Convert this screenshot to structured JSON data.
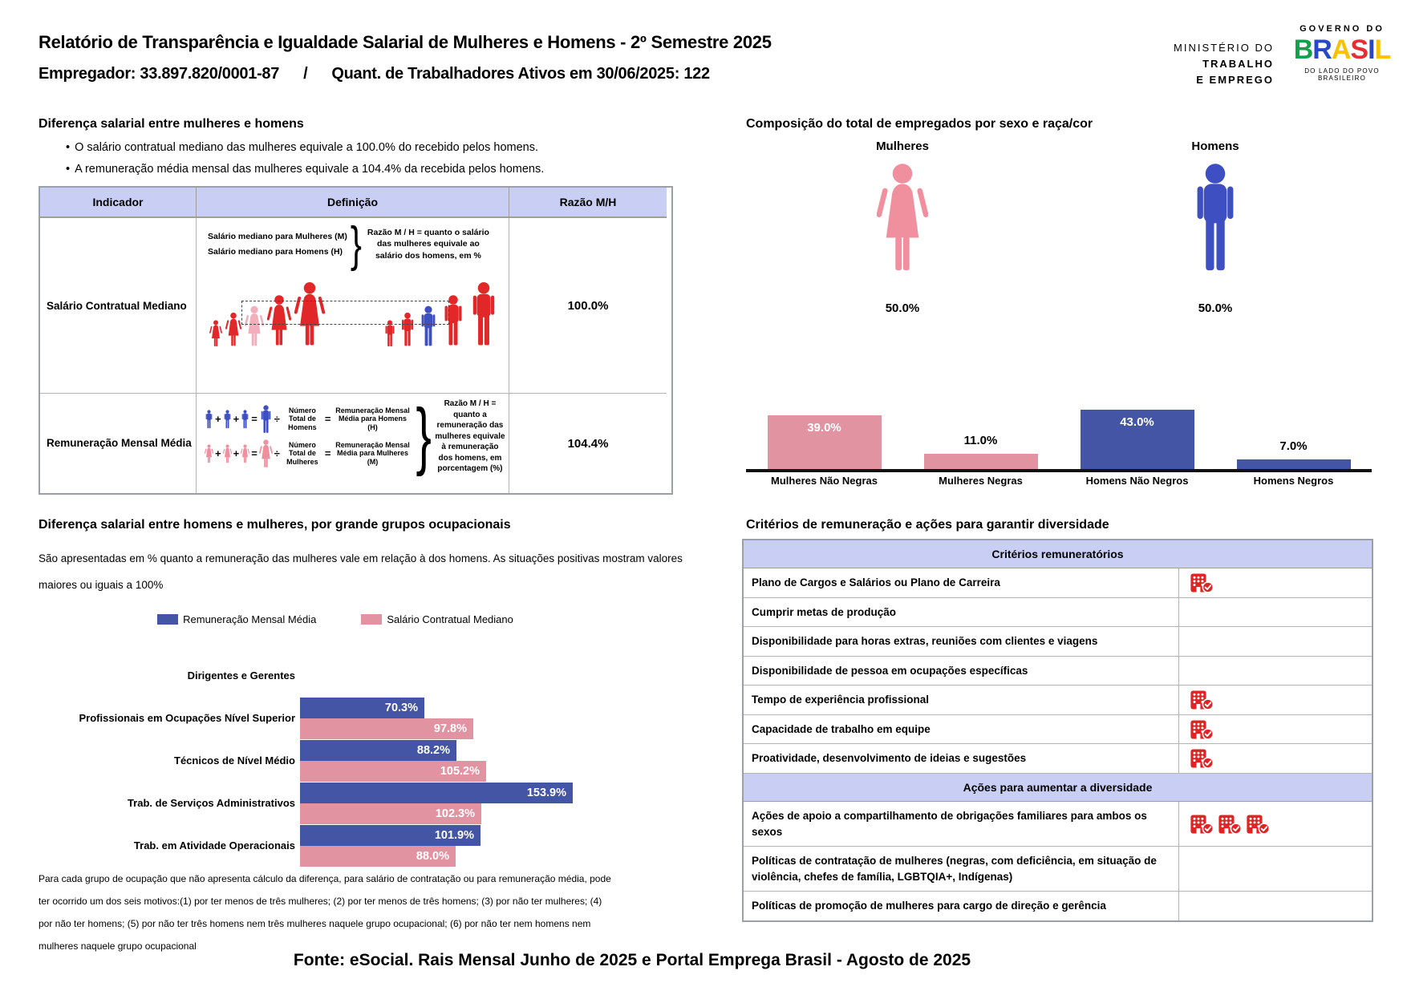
{
  "header": {
    "title": "Relatório de Transparência e Igualdade Salarial de Mulheres e Homens - 2º Semestre 2025",
    "employer": "Empregador: 33.897.820/0001-87",
    "separator": "/",
    "workers": "Quant. de Trabalhadores Ativos em 30/06/2025: 122",
    "ministry": {
      "line1": "MINISTÉRIO DO",
      "line2": "TRABALHO",
      "line3": "E EMPREGO"
    },
    "brasil": {
      "top": "GOVERNO DO",
      "name": "BRASIL",
      "bottom": "DO LADO DO POVO BRASILEIRO",
      "letter_colors": [
        "#13a04a",
        "#2749c8",
        "#f8c200",
        "#e23030",
        "#2749c8",
        "#f8c200"
      ]
    }
  },
  "colors": {
    "blue_bar": "#4355a4",
    "pink_bar": "#e293a1",
    "male_blue": "#3e4fc1",
    "female_pink": "#f0909f",
    "figure_red": "#e22728",
    "light_pink": "#f3aebc",
    "header_lavender": "#c9cff4",
    "icon_red": "#e02424"
  },
  "salary_diff": {
    "title": "Diferença salarial entre mulheres e homens",
    "bullets": [
      "O salário contratual mediano das mulheres equivale a 100.0% do recebido pelos homens.",
      "A remuneração média mensal das mulheres equivale a 104.4% da recebida pelos homens."
    ],
    "table": {
      "headers": [
        "Indicador",
        "Definição",
        "Razão M/H"
      ],
      "row1": {
        "indicator": "Salário Contratual Mediano",
        "def_line_women": "Salário mediano para Mulheres (M)",
        "def_line_men": "Salário mediano para Homens (H)",
        "note": "Razão M / H = quanto o salário das mulheres equivale ao salário dos homens, em %",
        "ratio": "100.0%"
      },
      "row2": {
        "indicator": "Remuneração Mensal Média",
        "plus": "+",
        "equals": "=",
        "divide": "÷",
        "men_count": "Número Total de Homens",
        "men_avg": "Remuneração Mensal Média para Homens (H)",
        "women_count": "Número Total de Mulheres",
        "women_avg": "Remuneração Mensal Média para Mulheres (M)",
        "note": "Razão M / H = quanto a remuneração das mulheres equivale à remuneração dos homens, em porcentagem (%)",
        "ratio": "104.4%"
      }
    }
  },
  "composition": {
    "title": "Composição do total de empregados por sexo e raça/cor",
    "women_label": "Mulheres",
    "women_value": "50.0%",
    "men_label": "Homens",
    "men_value": "50.0%",
    "chart_data": {
      "type": "bar",
      "categories": [
        "Mulheres Não Negras",
        "Mulheres Negras",
        "Homens Não Negros",
        "Homens Negros"
      ],
      "values": [
        39.0,
        11.0,
        43.0,
        7.0
      ],
      "unit": "%",
      "bar_colors": [
        "#e293a1",
        "#e293a1",
        "#4355a4",
        "#4355a4"
      ],
      "ylim": [
        0,
        50
      ],
      "grid": false
    }
  },
  "occupations": {
    "title": "Diferença salarial entre homens e mulheres, por grande grupos ocupacionais",
    "description": "São apresentadas em % quanto a remuneração das mulheres vale em relação à dos homens. As situações positivas mostram valores maiores ou iguais a 100%",
    "legend": [
      {
        "label": "Remuneração Mensal Média",
        "color": "#4355a4"
      },
      {
        "label": "Salário Contratual Mediano",
        "color": "#e293a1"
      }
    ],
    "chart_data": {
      "type": "bar-horizontal",
      "categories": [
        "Dirigentes e Gerentes",
        "Profissionais em Ocupações Nível Superior",
        "Técnicos de Nível Médio",
        "Trab. de Serviços Administrativos",
        "Trab. em Atividade Operacionais"
      ],
      "series": [
        {
          "name": "Remuneração Mensal Média",
          "values": [
            null,
            70.3,
            88.2,
            153.9,
            101.9
          ]
        },
        {
          "name": "Salário Contratual Mediano",
          "values": [
            null,
            97.8,
            105.2,
            102.3,
            88.0
          ]
        }
      ],
      "unit": "%",
      "legend_position": "top"
    },
    "footnote": "Para cada grupo de ocupação que não apresenta cálculo da diferença, para salário de contratação ou para remuneração média, pode ter ocorrido um dos seis motivos:(1) por ter menos de três mulheres; (2) por ter menos de três homens; (3) por não ter mulheres; (4) por não ter homens; (5) por não ter três homens nem três mulheres naquele grupo ocupacional; (6) por não ter nem homens nem mulheres naquele grupo ocupacional"
  },
  "criteria": {
    "title": "Critérios de remuneração e ações para garantir diversidade",
    "sections": [
      {
        "header": "Critérios remuneratórios",
        "rows": [
          {
            "label": "Plano de Cargos e Salários ou Plano de Carreira",
            "icons": 1
          },
          {
            "label": "Cumprir metas de produção",
            "icons": 0
          },
          {
            "label": "Disponibilidade para horas extras, reuniões com clientes e viagens",
            "icons": 0
          },
          {
            "label": "Disponibilidade de pessoa em ocupações específicas",
            "icons": 0
          },
          {
            "label": "Tempo de experiência profissional",
            "icons": 1
          },
          {
            "label": "Capacidade de trabalho em equipe",
            "icons": 1
          },
          {
            "label": "Proatividade, desenvolvimento de ideias e sugestões",
            "icons": 1
          }
        ]
      },
      {
        "header": "Ações para aumentar a diversidade",
        "rows": [
          {
            "label": "Ações de apoio a compartilhamento de obrigações familiares para ambos os sexos",
            "icons": 3
          },
          {
            "label": "Políticas de contratação de mulheres (negras, com deficiência, em situação de violência, chefes de família, LGBTQIA+, Indígenas)",
            "icons": 0
          },
          {
            "label": "Políticas de promoção de mulheres para cargo de direção e gerência",
            "icons": 0
          }
        ]
      }
    ]
  },
  "footer": "Fonte: eSocial. Rais Mensal Junho de 2025 e Portal Emprega Brasil - Agosto de 2025"
}
